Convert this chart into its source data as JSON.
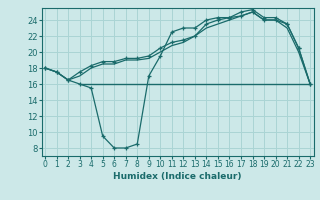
{
  "xlabel": "Humidex (Indice chaleur)",
  "background_color": "#cce8e8",
  "grid_color": "#aad4d4",
  "line_color": "#1a6b6b",
  "x_ticks": [
    0,
    1,
    2,
    3,
    4,
    5,
    6,
    7,
    8,
    9,
    10,
    11,
    12,
    13,
    14,
    15,
    16,
    17,
    18,
    19,
    20,
    21,
    22,
    23
  ],
  "y_ticks": [
    8,
    10,
    12,
    14,
    16,
    18,
    20,
    22,
    24
  ],
  "ylim": [
    7.0,
    25.5
  ],
  "xlim": [
    -0.3,
    23.3
  ],
  "line1_x": [
    0,
    1,
    2,
    3,
    4,
    5,
    6,
    7,
    8,
    9,
    10,
    11,
    12,
    13,
    14,
    15,
    16,
    17,
    18,
    19,
    20,
    21,
    22,
    23
  ],
  "line1_y": [
    18.0,
    17.5,
    16.5,
    17.5,
    18.3,
    18.8,
    18.8,
    19.2,
    19.2,
    19.5,
    20.5,
    21.2,
    21.5,
    22.0,
    23.5,
    24.0,
    24.3,
    25.0,
    25.3,
    24.3,
    24.3,
    23.5,
    20.5,
    16.0
  ],
  "line2_x": [
    0,
    1,
    2,
    3,
    4,
    5,
    6,
    7,
    8,
    9,
    10,
    11,
    12,
    13,
    14,
    15,
    16,
    17,
    18,
    19,
    20,
    21,
    22,
    23
  ],
  "line2_y": [
    18.0,
    17.5,
    16.5,
    17.0,
    18.0,
    18.5,
    18.5,
    19.0,
    19.0,
    19.2,
    20.0,
    20.8,
    21.2,
    22.0,
    23.0,
    23.5,
    24.0,
    24.5,
    25.0,
    24.0,
    24.0,
    23.0,
    20.0,
    16.0
  ],
  "line3_x": [
    0,
    1,
    2,
    3,
    4,
    5,
    6,
    7,
    8,
    9,
    10,
    11,
    12,
    13,
    14,
    15,
    16,
    17,
    18,
    19,
    20,
    21,
    22,
    23
  ],
  "line3_y": [
    18.0,
    17.5,
    16.5,
    16.0,
    15.5,
    9.5,
    8.0,
    8.0,
    8.5,
    17.0,
    19.5,
    22.5,
    23.0,
    23.0,
    24.0,
    24.3,
    24.3,
    24.5,
    25.0,
    24.0,
    24.0,
    23.5,
    20.5,
    16.0
  ],
  "hline_y": 16.0,
  "hline_x_start": 3,
  "hline_x_end": 23
}
